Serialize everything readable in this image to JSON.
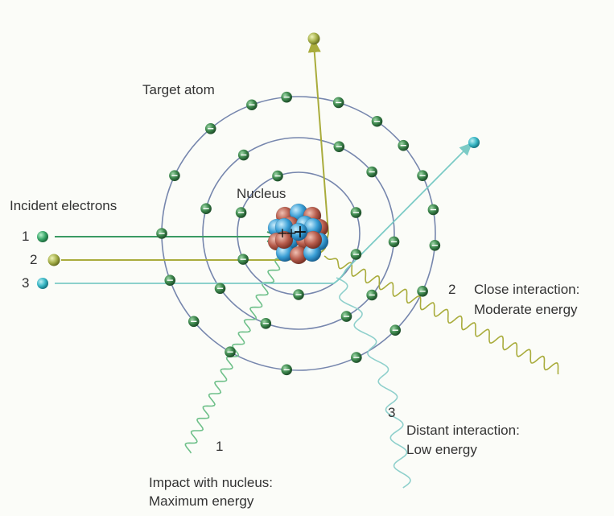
{
  "labels": {
    "target_atom": "Target atom",
    "nucleus": "Nucleus",
    "incident_electrons": "Incident electrons",
    "electron_1": "1",
    "electron_2": "2",
    "electron_3": "3",
    "photon_1_number": "1",
    "photon_2_number": "2",
    "photon_3_number": "3",
    "impact_title": "Impact with nucleus:",
    "impact_energy": "Maximum energy",
    "close_title": "Close interaction:",
    "close_energy": "Moderate energy",
    "distant_title": "Distant interaction:",
    "distant_energy": "Low energy"
  },
  "colors": {
    "orbit": "#6f7fa8",
    "electron_shell": "#2f6b3a",
    "electron_1": "#3aa86a",
    "electron_2": "#a6b04a",
    "electron_3": "#38b6c4",
    "path_1": "#3a9a63",
    "path_2": "#a9ac3c",
    "path_3": "#7ccbc6",
    "nucleus_proton": "#b65b4b",
    "nucleus_neutron": "#3a9fd6"
  }
}
